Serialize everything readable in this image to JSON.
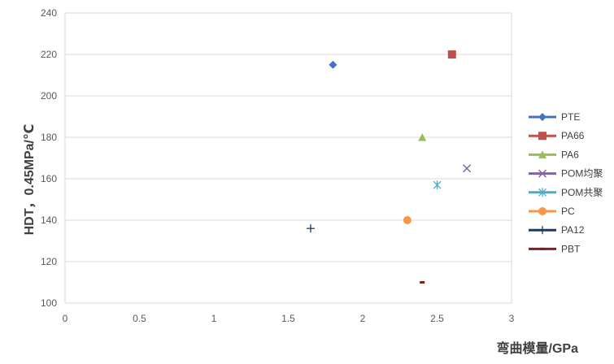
{
  "chart_data": {
    "type": "scatter",
    "title": "",
    "xlabel": "弯曲模量/GPa",
    "ylabel": "HDT，0.45MPa/℃",
    "xlim": [
      0,
      3
    ],
    "ylim": [
      100,
      240
    ],
    "xticks": [
      "0",
      "0.5",
      "1",
      "1.5",
      "2",
      "2.5",
      "3"
    ],
    "yticks": [
      "100",
      "120",
      "140",
      "160",
      "180",
      "200",
      "220",
      "240"
    ],
    "grid": "horizontal",
    "legend_position": "right",
    "series": [
      {
        "name": "PTE",
        "x": 1.8,
        "y": 215,
        "marker": "diamond",
        "color": "#4472C4"
      },
      {
        "name": "PA66",
        "x": 2.6,
        "y": 220,
        "marker": "square",
        "color": "#C0504D"
      },
      {
        "name": "PA6",
        "x": 2.4,
        "y": 180,
        "marker": "triangle",
        "color": "#9BBB59"
      },
      {
        "name": "POM均聚",
        "x": 2.7,
        "y": 165,
        "marker": "x",
        "color": "#8064A2"
      },
      {
        "name": "POM共聚",
        "x": 2.5,
        "y": 157,
        "marker": "star",
        "color": "#4BACC6"
      },
      {
        "name": "PC",
        "x": 2.3,
        "y": 140,
        "marker": "circle",
        "color": "#F79646"
      },
      {
        "name": "PA12",
        "x": 1.65,
        "y": 136,
        "marker": "plus",
        "color": "#1F3864"
      },
      {
        "name": "PBT",
        "x": 2.4,
        "y": 110,
        "marker": "dash",
        "color": "#7F1F1F"
      }
    ]
  }
}
